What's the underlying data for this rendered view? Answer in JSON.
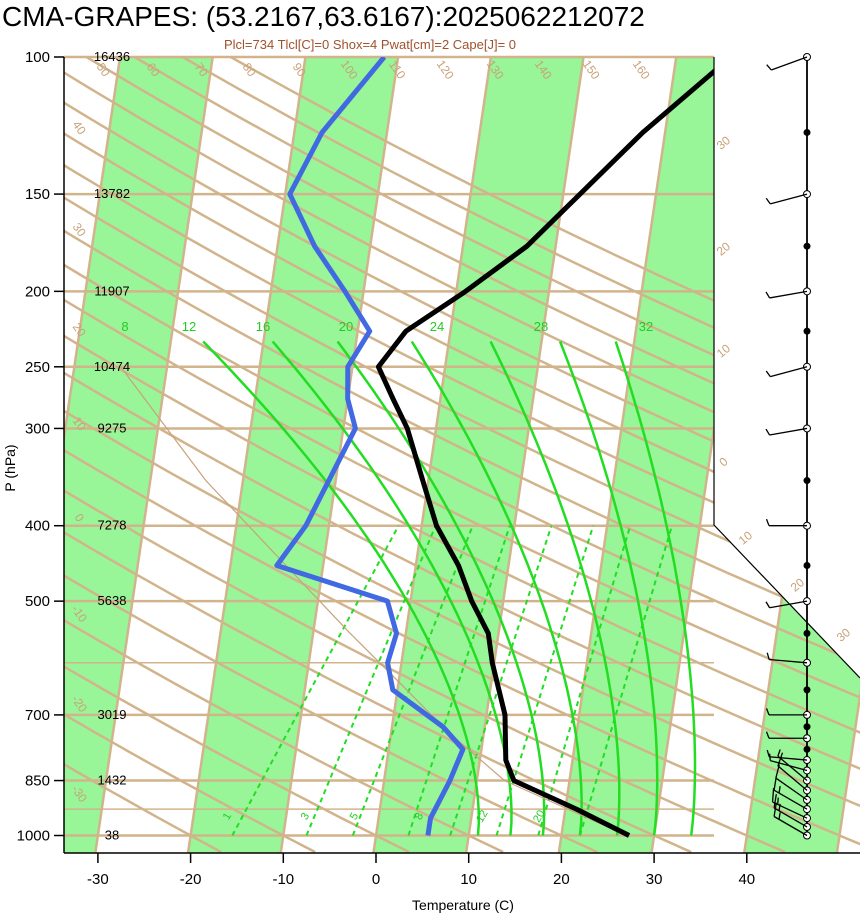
{
  "title": "CMA-GRAPES: (53.2167,63.6167):2025062212072",
  "subtitle": "Plcl=734 Tlcl[C]=0 Shox=4 Pwat[cm]=2 Cape[J]= 0",
  "chart_data": {
    "type": "skew-t",
    "xlabel": "Temperature (C)",
    "ylabel": "P (hPa)",
    "xlim": [
      -34,
      36
    ],
    "ylim": [
      1050,
      100
    ],
    "x_ticks": [
      -30,
      -20,
      -10,
      0,
      10,
      20,
      30,
      40
    ],
    "pressure_ticks": [
      {
        "p": 100,
        "label": "100",
        "height": "16436"
      },
      {
        "p": 150,
        "label": "150",
        "height": "13782"
      },
      {
        "p": 200,
        "label": "200",
        "height": "11907"
      },
      {
        "p": 250,
        "label": "250",
        "height": "10474"
      },
      {
        "p": 300,
        "label": "300",
        "height": "9275"
      },
      {
        "p": 400,
        "label": "400",
        "height": "7278"
      },
      {
        "p": 500,
        "label": "500",
        "height": "5638"
      },
      {
        "p": 700,
        "label": "700",
        "height": "3019"
      },
      {
        "p": 850,
        "label": "850",
        "height": "1432"
      },
      {
        "p": 1000,
        "label": "1000",
        "height": "38"
      }
    ],
    "isotherm_labels": [
      "-30",
      "-20",
      "-10",
      "0",
      "10",
      "20",
      "30",
      "40",
      "50",
      "60",
      "70",
      "80",
      "90",
      "100",
      "110",
      "120",
      "130",
      "140",
      "150",
      "160"
    ],
    "mixing_ratio_labels": [
      "8",
      "12",
      "16",
      "20",
      "24",
      "28",
      "32"
    ],
    "mixing_ratio_low_labels": [
      "1",
      "3",
      "5",
      "8",
      "12",
      "20"
    ],
    "temperature": {
      "name": "",
      "color": "#000000",
      "points": [
        {
          "p": 1000,
          "t": 27.3
        },
        {
          "p": 925,
          "t": 21.2
        },
        {
          "p": 850,
          "t": 14.0
        },
        {
          "p": 800,
          "t": 12.8
        },
        {
          "p": 700,
          "t": 12.0
        },
        {
          "p": 600,
          "t": 9.8
        },
        {
          "p": 550,
          "t": 8.9
        },
        {
          "p": 500,
          "t": 6.6
        },
        {
          "p": 450,
          "t": 4.6
        },
        {
          "p": 400,
          "t": 1.6
        },
        {
          "p": 350,
          "t": -0.6
        },
        {
          "p": 300,
          "t": -3.1
        },
        {
          "p": 275,
          "t": -5.1
        },
        {
          "p": 250,
          "t": -7.2
        },
        {
          "p": 225,
          "t": -4.8
        },
        {
          "p": 200,
          "t": 1.0
        },
        {
          "p": 175,
          "t": 6.9
        },
        {
          "p": 150,
          "t": 11.8
        },
        {
          "p": 125,
          "t": 17.6
        },
        {
          "p": 100,
          "t": 25.9
        }
      ]
    },
    "dewpoint": {
      "name": "",
      "color": "#4169e1",
      "points": [
        {
          "p": 1000,
          "t": 5.6
        },
        {
          "p": 950,
          "t": 5.6
        },
        {
          "p": 850,
          "t": 7.1
        },
        {
          "p": 775,
          "t": 8.0
        },
        {
          "p": 725,
          "t": 5.5
        },
        {
          "p": 650,
          "t": -0.5
        },
        {
          "p": 600,
          "t": -1.5
        },
        {
          "p": 550,
          "t": -1.0
        },
        {
          "p": 500,
          "t": -2.5
        },
        {
          "p": 450,
          "t": -15.0
        },
        {
          "p": 400,
          "t": -12.5
        },
        {
          "p": 300,
          "t": -8.7
        },
        {
          "p": 275,
          "t": -10.0
        },
        {
          "p": 250,
          "t": -10.5
        },
        {
          "p": 225,
          "t": -8.7
        },
        {
          "p": 200,
          "t": -12.0
        },
        {
          "p": 175,
          "t": -16.0
        },
        {
          "p": 150,
          "t": -19.5
        },
        {
          "p": 125,
          "t": -17.0
        },
        {
          "p": 100,
          "t": -11.5
        }
      ]
    },
    "wind_barbs": [
      {
        "p": 1000,
        "dir": 300,
        "kt": 15
      },
      {
        "p": 975,
        "dir": 300,
        "kt": 15
      },
      {
        "p": 950,
        "dir": 295,
        "kt": 15
      },
      {
        "p": 925,
        "dir": 300,
        "kt": 15
      },
      {
        "p": 900,
        "dir": 305,
        "kt": 10
      },
      {
        "p": 875,
        "dir": 310,
        "kt": 10
      },
      {
        "p": 850,
        "dir": 310,
        "kt": 5
      },
      {
        "p": 825,
        "dir": 285,
        "kt": 5
      },
      {
        "p": 800,
        "dir": 275,
        "kt": 5
      },
      {
        "p": 750,
        "dir": 270,
        "kt": 5
      },
      {
        "p": 700,
        "dir": 270,
        "kt": 5
      },
      {
        "p": 600,
        "dir": 275,
        "kt": 5
      },
      {
        "p": 500,
        "dir": 260,
        "kt": 5
      },
      {
        "p": 400,
        "dir": 270,
        "kt": 5
      },
      {
        "p": 300,
        "dir": 260,
        "kt": 5
      },
      {
        "p": 250,
        "dir": 255,
        "kt": 5
      },
      {
        "p": 200,
        "dir": 260,
        "kt": 5
      },
      {
        "p": 150,
        "dir": 255,
        "kt": 5
      },
      {
        "p": 100,
        "dir": 250,
        "kt": 5
      }
    ],
    "wind_profile_levels": [
      1000,
      975,
      950,
      925,
      900,
      875,
      850,
      825,
      800,
      775,
      750,
      725,
      700,
      650,
      600,
      550,
      500,
      450,
      400,
      350,
      300,
      250,
      225,
      200,
      175,
      150,
      125,
      100
    ],
    "colors": {
      "isotherm": "#d2b48c",
      "band": "#98f598",
      "mixing_ratio": "#22dd22",
      "axis": "#000000"
    }
  }
}
